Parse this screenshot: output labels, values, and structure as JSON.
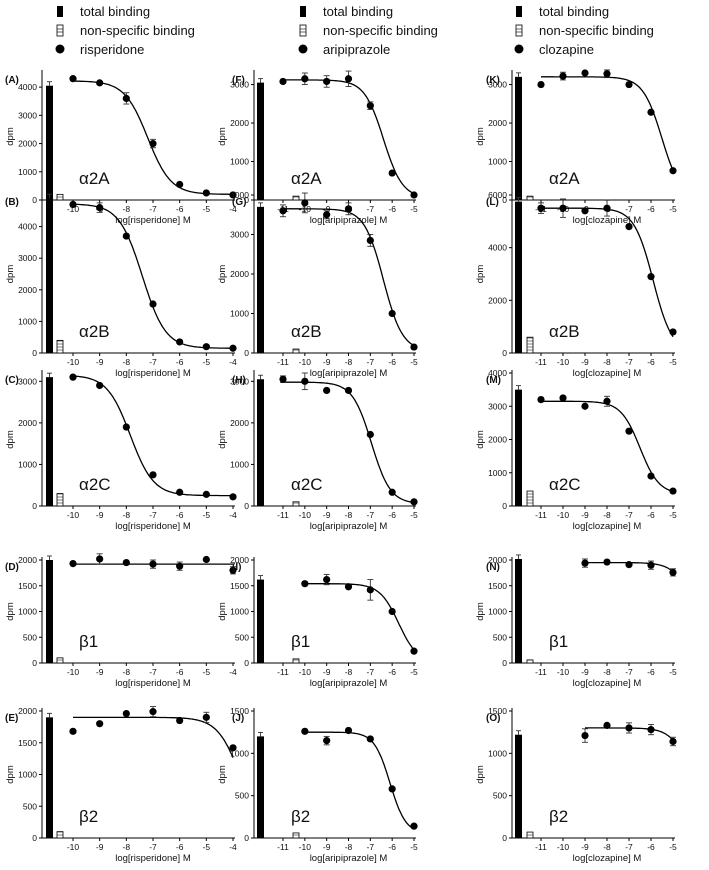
{
  "legend_text": {
    "total": "total binding",
    "nonspecific": "non-specific binding"
  },
  "ylabel": "dpm",
  "chart_data": [
    {
      "panel": "(A)",
      "receptor": "α2A",
      "drug": "risperidone",
      "type": "scatter",
      "xlabel": "log[risperidone] M",
      "xlim": [
        -10,
        -4
      ],
      "ylim": [
        0,
        4500
      ],
      "yticks": [
        0,
        1000,
        2000,
        3000,
        4000
      ],
      "total_binding": 4050,
      "nonspecific_binding": 200,
      "x": [
        -10,
        -9,
        -8,
        -7,
        -6,
        -5,
        -4
      ],
      "y": [
        4300,
        4150,
        3600,
        2000,
        550,
        250,
        180
      ],
      "yerr": [
        0,
        0,
        200,
        150,
        0,
        0,
        0
      ],
      "fit": {
        "top": 4220,
        "bottom": 200,
        "logIC50": -7.2,
        "hill": 1
      }
    },
    {
      "panel": "(B)",
      "receptor": "α2B",
      "drug": "risperidone",
      "type": "scatter",
      "xlabel": "log[risperidone] M",
      "xlim": [
        -10,
        -4
      ],
      "ylim": [
        0,
        5000
      ],
      "yticks": [
        0,
        1000,
        2000,
        3000,
        4000
      ],
      "total_binding": 4900,
      "nonspecific_binding": 400,
      "x": [
        -10,
        -9,
        -8,
        -7,
        -6,
        -5,
        -4
      ],
      "y": [
        4700,
        4600,
        3700,
        1550,
        350,
        200,
        150
      ],
      "yerr": [
        0,
        150,
        0,
        0,
        0,
        0,
        0
      ],
      "fit": {
        "top": 4720,
        "bottom": 150,
        "logIC50": -7.4,
        "hill": 1
      }
    },
    {
      "panel": "(C)",
      "receptor": "α2C",
      "drug": "risperidone",
      "type": "scatter",
      "xlabel": "log[risperidone] M",
      "xlim": [
        -10,
        -4
      ],
      "ylim": [
        0,
        3200
      ],
      "yticks": [
        0,
        1000,
        2000,
        3000
      ],
      "total_binding": 3100,
      "nonspecific_binding": 300,
      "x": [
        -10,
        -9,
        -8,
        -7,
        -6,
        -5,
        -4
      ],
      "y": [
        3100,
        2900,
        1900,
        750,
        330,
        280,
        220
      ],
      "yerr": [
        0,
        0,
        0,
        0,
        0,
        0,
        0
      ],
      "fit": {
        "top": 3150,
        "bottom": 250,
        "logIC50": -7.85,
        "hill": 1
      }
    },
    {
      "panel": "(D)",
      "receptor": "β1",
      "drug": "risperidone",
      "type": "scatter",
      "xlabel": "log[risperidone] M",
      "xlim": [
        -10,
        -4
      ],
      "ylim": [
        0,
        2000
      ],
      "yticks": [
        0,
        500,
        1000,
        1500,
        2000
      ],
      "total_binding": 2000,
      "nonspecific_binding": 100,
      "x": [
        -10,
        -9,
        -8,
        -7,
        -6,
        -5,
        -4
      ],
      "y": [
        1930,
        2020,
        1950,
        1920,
        1880,
        2010,
        1800
      ],
      "yerr": [
        0,
        100,
        0,
        80,
        80,
        0,
        70
      ],
      "fit": {
        "flat": 1920
      }
    },
    {
      "panel": "(E)",
      "receptor": "β2",
      "drug": "risperidone",
      "type": "scatter",
      "xlabel": "log[risperidone] M",
      "xlim": [
        -10,
        -4
      ],
      "ylim": [
        0,
        2000
      ],
      "yticks": [
        0,
        500,
        1000,
        1500,
        2000
      ],
      "total_binding": 1900,
      "nonspecific_binding": 100,
      "x": [
        -10,
        -9,
        -8,
        -7,
        -6,
        -5,
        -4
      ],
      "y": [
        1680,
        1800,
        1960,
        1990,
        1850,
        1900,
        1420
      ],
      "yerr": [
        0,
        0,
        0,
        80,
        0,
        80,
        0
      ],
      "fit": {
        "top": 1900,
        "bottom": 0,
        "logIC50": -3.7,
        "hill": 1
      }
    },
    {
      "panel": "(F)",
      "receptor": "α2A",
      "drug": "aripiprazole",
      "type": "scatter",
      "xlabel": "log[aripiprazole] M",
      "xlim": [
        -11,
        -5
      ],
      "ylim": [
        0,
        3300
      ],
      "yticks": [
        0,
        1000,
        2000,
        3000
      ],
      "total_binding": 3050,
      "nonspecific_binding": 100,
      "x": [
        -11,
        -10,
        -9,
        -8,
        -7,
        -6,
        -5
      ],
      "y": [
        3080,
        3150,
        3080,
        3150,
        2450,
        700,
        130
      ],
      "yerr": [
        0,
        150,
        150,
        200,
        100,
        0,
        0
      ],
      "fit": {
        "top": 3120,
        "bottom": 50,
        "logIC50": -6.4,
        "hill": 1
      }
    },
    {
      "panel": "(G)",
      "receptor": "α2B",
      "drug": "aripiprazole",
      "type": "scatter",
      "xlabel": "log[aripiprazole] M",
      "xlim": [
        -11,
        -5
      ],
      "ylim": [
        0,
        4000
      ],
      "yticks": [
        0,
        1000,
        2000,
        3000,
        4000
      ],
      "total_binding": 3700,
      "nonspecific_binding": 100,
      "x": [
        -11,
        -10,
        -9,
        -8,
        -7,
        -6,
        -5
      ],
      "y": [
        3600,
        3800,
        3500,
        3650,
        2850,
        1000,
        150
      ],
      "yerr": [
        150,
        250,
        100,
        150,
        150,
        0,
        0
      ],
      "fit": {
        "top": 3650,
        "bottom": 50,
        "logIC50": -6.4,
        "hill": 1
      }
    },
    {
      "panel": "(H)",
      "receptor": "α2C",
      "drug": "aripiprazole",
      "type": "scatter",
      "xlabel": "log[aripiprazole] M",
      "xlim": [
        -11,
        -5
      ],
      "ylim": [
        0,
        3200
      ],
      "yticks": [
        0,
        1000,
        2000,
        3000
      ],
      "total_binding": 3050,
      "nonspecific_binding": 100,
      "x": [
        -11,
        -10,
        -9,
        -8,
        -7,
        -6,
        -5
      ],
      "y": [
        3050,
        3000,
        2780,
        2780,
        1720,
        330,
        100
      ],
      "yerr": [
        80,
        200,
        0,
        0,
        0,
        0,
        0
      ],
      "fit": {
        "top": 2980,
        "bottom": 50,
        "logIC50": -6.95,
        "hill": 1
      }
    },
    {
      "panel": "(I)",
      "receptor": "β1",
      "drug": "aripiprazole",
      "type": "scatter",
      "xlabel": "log[aripiprazole] M",
      "xlim": [
        -11,
        -5
      ],
      "ylim": [
        0,
        2000
      ],
      "yticks": [
        0,
        500,
        1000,
        1500,
        2000
      ],
      "total_binding": 1620,
      "nonspecific_binding": 80,
      "x": [
        -10,
        -9,
        -8,
        -7,
        -6,
        -5
      ],
      "y": [
        1540,
        1620,
        1480,
        1420,
        1000,
        230
      ],
      "yerr": [
        0,
        100,
        0,
        200,
        0,
        0
      ],
      "fit": {
        "top": 1540,
        "bottom": 0,
        "logIC50": -5.7,
        "hill": 1
      }
    },
    {
      "panel": "(J)",
      "receptor": "β2",
      "drug": "aripiprazole",
      "type": "scatter",
      "xlabel": "log[aripiprazole] M",
      "xlim": [
        -11,
        -5
      ],
      "ylim": [
        0,
        1500
      ],
      "yticks": [
        0,
        500,
        1000,
        1500
      ],
      "total_binding": 1200,
      "nonspecific_binding": 60,
      "x": [
        -10,
        -9,
        -8,
        -7,
        -6,
        -5
      ],
      "y": [
        1260,
        1150,
        1270,
        1170,
        580,
        140
      ],
      "yerr": [
        0,
        50,
        0,
        0,
        0,
        0
      ],
      "fit": {
        "top": 1250,
        "bottom": 50,
        "logIC50": -6.1,
        "hill": 1.2
      }
    },
    {
      "panel": "(K)",
      "receptor": "α2A",
      "drug": "clozapine",
      "type": "scatter",
      "xlabel": "log[clozapine] M",
      "xlim": [
        -11,
        -5
      ],
      "ylim": [
        0,
        3300
      ],
      "yticks": [
        0,
        1000,
        2000,
        3000
      ],
      "total_binding": 3200,
      "nonspecific_binding": 100,
      "x": [
        -11,
        -10,
        -9,
        -8,
        -7,
        -6,
        -5
      ],
      "y": [
        3000,
        3220,
        3300,
        3280,
        3000,
        2280,
        760
      ],
      "yerr": [
        0,
        100,
        0,
        100,
        0,
        0,
        0
      ],
      "fit": {
        "top": 3200,
        "bottom": 0,
        "logIC50": -5.5,
        "hill": 1
      }
    },
    {
      "panel": "(L)",
      "receptor": "α2B",
      "drug": "clozapine",
      "type": "scatter",
      "xlabel": "log[clozapine] M",
      "xlim": [
        -11,
        -5
      ],
      "ylim": [
        0,
        6000
      ],
      "yticks": [
        0,
        2000,
        4000,
        6000
      ],
      "total_binding": 5750,
      "nonspecific_binding": 600,
      "x": [
        -11,
        -10,
        -9,
        -8,
        -7,
        -6,
        -5
      ],
      "y": [
        5500,
        5500,
        5400,
        5500,
        4800,
        2900,
        800
      ],
      "yerr": [
        200,
        350,
        0,
        300,
        0,
        0,
        0
      ],
      "fit": {
        "top": 5500,
        "bottom": 0,
        "logIC50": -5.9,
        "hill": 1
      }
    },
    {
      "panel": "(M)",
      "receptor": "α2C",
      "drug": "clozapine",
      "type": "scatter",
      "xlabel": "log[clozapine] M",
      "xlim": [
        -11,
        -5
      ],
      "ylim": [
        0,
        4000
      ],
      "yticks": [
        0,
        1000,
        2000,
        3000,
        4000
      ],
      "total_binding": 3500,
      "nonspecific_binding": 450,
      "x": [
        -11,
        -10,
        -9,
        -8,
        -7,
        -6,
        -5
      ],
      "y": [
        3200,
        3250,
        3000,
        3150,
        2250,
        900,
        450
      ],
      "yerr": [
        0,
        0,
        0,
        150,
        0,
        0,
        0
      ],
      "fit": {
        "top": 3150,
        "bottom": 350,
        "logIC50": -6.5,
        "hill": 1
      }
    },
    {
      "panel": "(N)",
      "receptor": "β1",
      "drug": "clozapine",
      "type": "scatter",
      "xlabel": "log[clozapine] M",
      "xlim": [
        -11,
        -5
      ],
      "ylim": [
        0,
        2000
      ],
      "yticks": [
        0,
        500,
        1000,
        1500,
        2000
      ],
      "total_binding": 2020,
      "nonspecific_binding": 60,
      "x": [
        -9,
        -8,
        -7,
        -6,
        -5
      ],
      "y": [
        1940,
        1960,
        1910,
        1900,
        1760
      ],
      "yerr": [
        80,
        0,
        0,
        80,
        70
      ],
      "fit": {
        "top": 1950,
        "bottom": 0,
        "logIC50": -4.0,
        "hill": 1
      }
    },
    {
      "panel": "(O)",
      "receptor": "β2",
      "drug": "clozapine",
      "type": "scatter",
      "xlabel": "log[clozapine] M",
      "xlim": [
        -11,
        -5
      ],
      "ylim": [
        0,
        1500
      ],
      "yticks": [
        0,
        500,
        1000,
        1500
      ],
      "total_binding": 1220,
      "nonspecific_binding": 70,
      "x": [
        -9,
        -8,
        -7,
        -6,
        -5
      ],
      "y": [
        1210,
        1330,
        1300,
        1280,
        1140
      ],
      "yerr": [
        80,
        0,
        60,
        60,
        50
      ],
      "fit": {
        "top": 1300,
        "bottom": 0,
        "logIC50": -4.1,
        "hill": 1
      }
    }
  ]
}
